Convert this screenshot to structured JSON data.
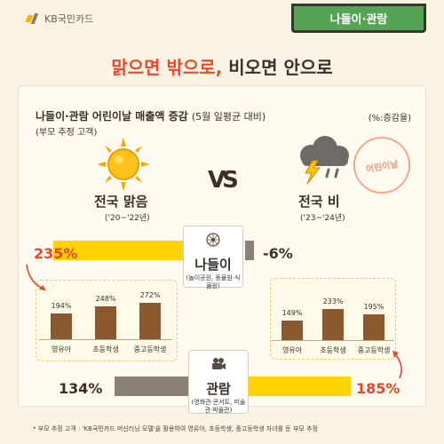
{
  "brand": {
    "name": "KB국민카드"
  },
  "category_tag": "나들이·관람",
  "headline": {
    "part1": "맑으면 밖으로,",
    "part2": "비오면 안으로"
  },
  "chart_header": {
    "title": "나들이·관람 어린이날 매출액 증감",
    "title_note": "(5월 일평균 대비)",
    "subtitle": "(부모 추정 고객)",
    "unit": "(%:증감율)"
  },
  "scenes": {
    "sunny": {
      "label": "전국 맑음",
      "period": "('20~'22년)"
    },
    "vs": "VS",
    "rainy": {
      "label": "전국 비",
      "period": "('23~'24년)"
    },
    "stamp_text": "어린이날"
  },
  "chart_data": [
    {
      "type": "bar",
      "title": "",
      "categories": [
        "나들이",
        "관람"
      ],
      "category_descriptions": [
        "(놀이공원, 동물원·식물원)",
        "(영화관·콘서트, 미술관·박물관)"
      ],
      "series": [
        {
          "name": "전국 맑음",
          "values": [
            235,
            134
          ]
        },
        {
          "name": "전국 비",
          "values": [
            -6,
            185
          ]
        }
      ],
      "value_labels": {
        "sunny": [
          "235%",
          "134%"
        ],
        "rainy": [
          "-6%",
          "185%"
        ]
      },
      "colors": {
        "highlight": "#ffd200",
        "muted": "#8b8174",
        "accent_text": "#e8452a"
      }
    },
    {
      "type": "bar",
      "title": "",
      "group": "나들이 · 전국 맑음",
      "categories": [
        "영유아",
        "초등학생",
        "중고등학생"
      ],
      "values": [
        194,
        248,
        272
      ],
      "value_labels": [
        "194%",
        "248%",
        "272%"
      ],
      "color": "#8a5a2e"
    },
    {
      "type": "bar",
      "title": "",
      "group": "관람 · 전국 비",
      "categories": [
        "영유아",
        "초등학생",
        "중고등학생"
      ],
      "values": [
        149,
        233,
        195
      ],
      "value_labels": [
        "149%",
        "233%",
        "195%"
      ],
      "color": "#8a5a2e"
    }
  ],
  "footnote": "* 부모 추정 고객 : 'KB국민카드 머신러닝 모델'을 활용하여 영유아, 초등학생, 중고등학생 자녀를 둔 부모 추정"
}
